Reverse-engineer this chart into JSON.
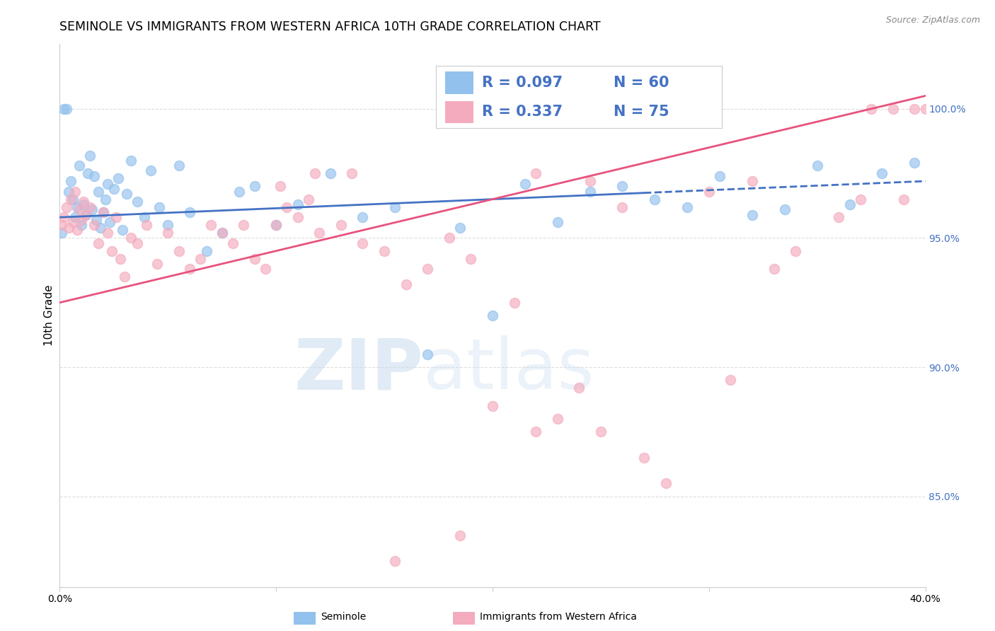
{
  "title": "SEMINOLE VS IMMIGRANTS FROM WESTERN AFRICA 10TH GRADE CORRELATION CHART",
  "source": "Source: ZipAtlas.com",
  "ylabel": "10th Grade",
  "x_tick_labels": [
    "0.0%",
    "",
    "",
    "",
    "40.0%"
  ],
  "x_ticks": [
    0.0,
    10.0,
    20.0,
    30.0,
    40.0
  ],
  "y_tick_labels_right": [
    "85.0%",
    "90.0%",
    "95.0%",
    "100.0%"
  ],
  "y_ticks_right": [
    85.0,
    90.0,
    95.0,
    100.0
  ],
  "xlim": [
    0.0,
    40.0
  ],
  "ylim": [
    81.5,
    102.5
  ],
  "legend_label_blue": "Seminole",
  "legend_label_pink": "Immigrants from Western Africa",
  "R_blue": 0.097,
  "N_blue": 60,
  "R_pink": 0.337,
  "N_pink": 75,
  "blue_color": "#92C1ED",
  "pink_color": "#F4ABBE",
  "trend_blue_color": "#4472C4",
  "trend_pink_color": "#E8527D",
  "background_color": "#FFFFFF",
  "grid_color": "#DDDDDD",
  "title_fontsize": 12.5,
  "axis_label_fontsize": 11,
  "tick_fontsize": 10,
  "blue_x": [
    0.1,
    0.2,
    0.3,
    0.4,
    0.5,
    0.6,
    0.7,
    0.8,
    0.9,
    1.0,
    1.1,
    1.2,
    1.3,
    1.4,
    1.5,
    1.6,
    1.7,
    1.8,
    1.9,
    2.0,
    2.1,
    2.2,
    2.3,
    2.5,
    2.7,
    2.9,
    3.1,
    3.3,
    3.6,
    3.9,
    4.2,
    4.6,
    5.0,
    5.5,
    6.0,
    6.8,
    7.5,
    8.3,
    9.0,
    10.0,
    11.0,
    12.5,
    14.0,
    15.5,
    17.0,
    18.5,
    20.0,
    21.5,
    23.0,
    24.5,
    26.0,
    27.5,
    29.0,
    30.5,
    32.0,
    33.5,
    35.0,
    36.5,
    38.0,
    39.5
  ],
  "blue_y": [
    95.2,
    100.0,
    100.0,
    96.8,
    97.2,
    96.5,
    95.8,
    96.2,
    97.8,
    95.5,
    96.3,
    95.9,
    97.5,
    98.2,
    96.1,
    97.4,
    95.7,
    96.8,
    95.4,
    96.0,
    96.5,
    97.1,
    95.6,
    96.9,
    97.3,
    95.3,
    96.7,
    98.0,
    96.4,
    95.8,
    97.6,
    96.2,
    95.5,
    97.8,
    96.0,
    94.5,
    95.2,
    96.8,
    97.0,
    95.5,
    96.3,
    97.5,
    95.8,
    96.2,
    90.5,
    95.4,
    92.0,
    97.1,
    95.6,
    96.8,
    97.0,
    96.5,
    96.2,
    97.4,
    95.9,
    96.1,
    97.8,
    96.3,
    97.5,
    97.9
  ],
  "pink_x": [
    0.1,
    0.2,
    0.3,
    0.4,
    0.5,
    0.6,
    0.7,
    0.8,
    0.9,
    1.0,
    1.1,
    1.2,
    1.4,
    1.6,
    1.8,
    2.0,
    2.2,
    2.4,
    2.6,
    2.8,
    3.0,
    3.3,
    3.6,
    4.0,
    4.5,
    5.0,
    5.5,
    6.0,
    6.5,
    7.0,
    7.5,
    8.0,
    8.5,
    9.0,
    9.5,
    10.0,
    10.5,
    11.0,
    11.5,
    12.0,
    13.0,
    14.0,
    15.0,
    16.0,
    17.0,
    18.0,
    19.0,
    20.0,
    21.0,
    22.0,
    23.0,
    24.0,
    25.0,
    26.0,
    27.0,
    28.0,
    30.0,
    32.0,
    34.0,
    36.0,
    37.0,
    37.5,
    38.5,
    39.0,
    39.5,
    40.0,
    33.0,
    31.0,
    18.5,
    15.5,
    10.2,
    11.8,
    13.5,
    22.0,
    24.5
  ],
  "pink_y": [
    95.5,
    95.8,
    96.2,
    95.4,
    96.5,
    95.6,
    96.8,
    95.3,
    96.1,
    95.7,
    96.4,
    95.9,
    96.2,
    95.5,
    94.8,
    96.0,
    95.2,
    94.5,
    95.8,
    94.2,
    93.5,
    95.0,
    94.8,
    95.5,
    94.0,
    95.2,
    94.5,
    93.8,
    94.2,
    95.5,
    95.2,
    94.8,
    95.5,
    94.2,
    93.8,
    95.5,
    96.2,
    95.8,
    96.5,
    95.2,
    95.5,
    94.8,
    94.5,
    93.2,
    93.8,
    95.0,
    94.2,
    88.5,
    92.5,
    87.5,
    88.0,
    89.2,
    87.5,
    96.2,
    86.5,
    85.5,
    96.8,
    97.2,
    94.5,
    95.8,
    96.5,
    100.0,
    100.0,
    96.5,
    100.0,
    100.0,
    93.8,
    89.5,
    83.5,
    82.5,
    97.0,
    97.5,
    97.5,
    97.5,
    97.2
  ],
  "blue_trend_x0": 0.0,
  "blue_trend_x1": 40.0,
  "blue_trend_y0": 95.8,
  "blue_trend_y1": 97.2,
  "blue_solid_end": 27.0,
  "pink_trend_x0": 0.0,
  "pink_trend_x1": 40.0,
  "pink_trend_y0": 92.5,
  "pink_trend_y1": 100.5
}
